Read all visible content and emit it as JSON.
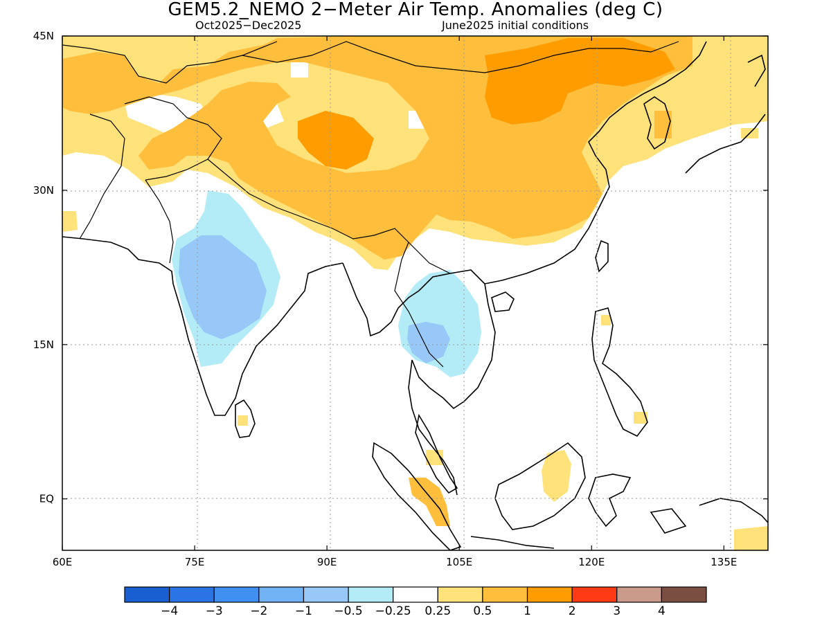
{
  "title": "GEM5.2_NEMO 2−Meter Air Temp. Anomalies (deg C)",
  "subtitle_left": "Oct2025−Dec2025",
  "subtitle_right": "June2025 initial conditions",
  "map": {
    "lon_range": [
      60,
      140
    ],
    "lat_range": [
      -5,
      45
    ],
    "lon_ticks": [
      {
        "value": 60,
        "label": "60E"
      },
      {
        "value": 75,
        "label": "75E"
      },
      {
        "value": 90,
        "label": "90E"
      },
      {
        "value": 105,
        "label": "105E"
      },
      {
        "value": 120,
        "label": "120E"
      },
      {
        "value": 135,
        "label": "135E"
      }
    ],
    "lat_ticks": [
      {
        "value": 45,
        "label": "45N"
      },
      {
        "value": 30,
        "label": "30N"
      },
      {
        "value": 15,
        "label": "15N"
      },
      {
        "value": 0,
        "label": "EQ"
      }
    ],
    "grid": "dotted"
  },
  "colorbar": {
    "colors": [
      "#1a5fd1",
      "#2b74e6",
      "#3f90f0",
      "#71b2f5",
      "#97c8f8",
      "#b3ecf6",
      "#ffffff",
      "#ffe27a",
      "#ffbf3c",
      "#ff9c00",
      "#ff3a14",
      "#c9998a",
      "#7a4e40"
    ],
    "labels": [
      "−4",
      "−3",
      "−2",
      "−1",
      "−0.5",
      "−0.25",
      "0.25",
      "0.5",
      "1",
      "2",
      "3",
      "4"
    ]
  }
}
